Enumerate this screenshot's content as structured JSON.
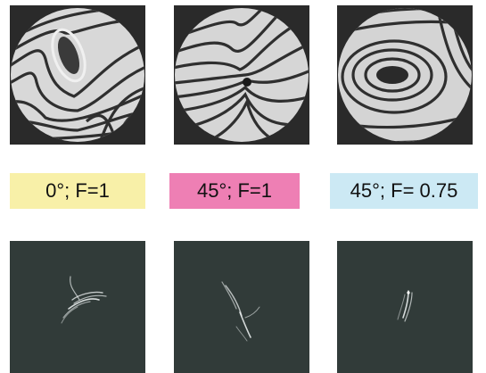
{
  "columns": [
    {
      "label": "0°; F=1",
      "label_bg": "#f8f0a8"
    },
    {
      "label": "45°; F=1",
      "label_bg": "#ee7fb4"
    },
    {
      "label": "45°; F= 0.75",
      "label_bg": "#cce9f4"
    }
  ]
}
